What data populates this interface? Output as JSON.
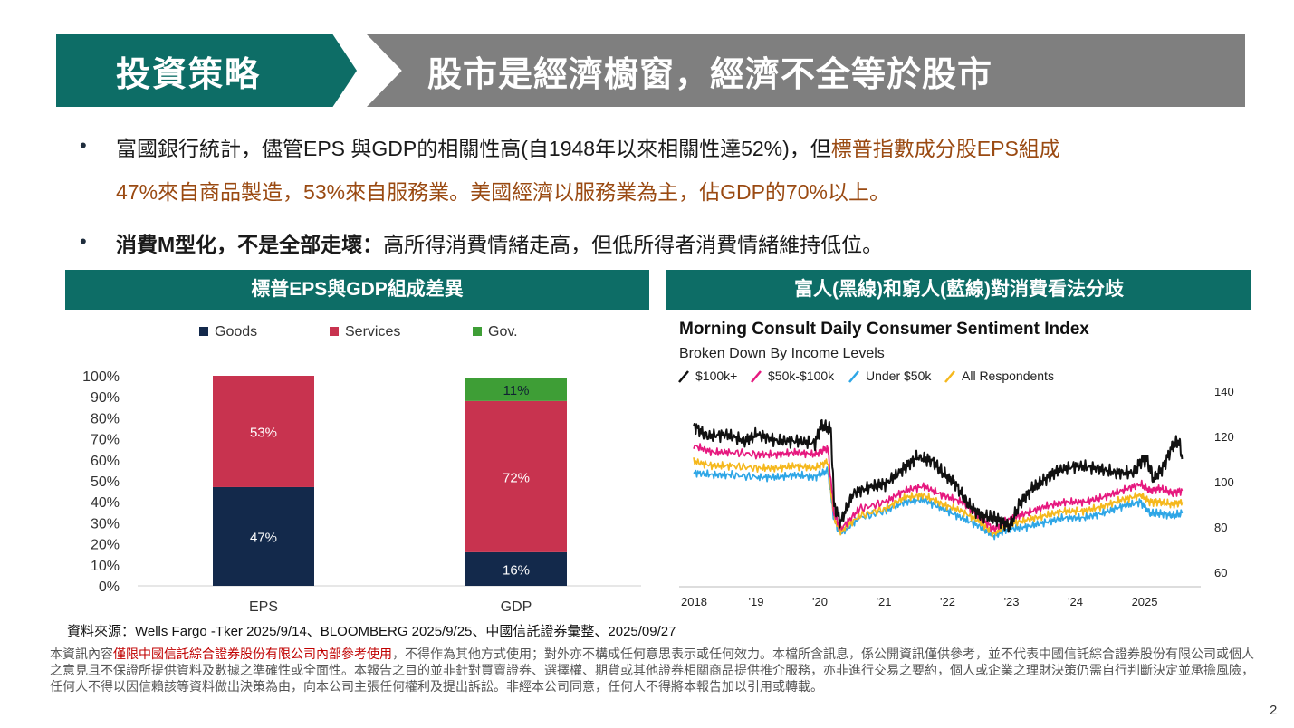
{
  "header": {
    "left_title": "投資策略",
    "right_title": "股市是經濟櫥窗，經濟不全等於股市"
  },
  "bullets": {
    "b1_line1_normal": "富國銀行統計，儘管EPS  與GDP的相關性高(自1948年以來相關性達52%)，但",
    "b1_line1_highlight": "標普指數成分股EPS組成",
    "b1_line2_highlight": "47%來自商品製造，53%來自服務業。美國經濟以服務業為主，佔GDP的70%以上。",
    "b2_bold": "消費M型化，不是全部走壞：",
    "b2_normal": "高所得消費情緒走高，但低所得者消費情緒維持低位。"
  },
  "left_panel": {
    "title": "標普EPS與GDP組成差異"
  },
  "right_panel": {
    "title": "富人(黑線)和窮人(藍線)對消費看法分歧"
  },
  "chart_data": [
    {
      "type": "bar",
      "stacked": true,
      "categories": [
        "EPS",
        "GDP"
      ],
      "series": [
        {
          "name": "Goods",
          "values": [
            47,
            16
          ],
          "color": "#13294b"
        },
        {
          "name": "Services",
          "values": [
            53,
            72
          ],
          "color": "#c8334f"
        },
        {
          "name": "Gov.",
          "values": [
            0,
            11
          ],
          "color": "#3e9e36"
        }
      ],
      "data_labels": {
        "EPS": [
          "47%",
          "53%",
          ""
        ],
        "GDP": [
          "16%",
          "72%",
          "11%"
        ]
      },
      "ytick_labels": [
        "100%",
        "90%",
        "80%",
        "70%",
        "60%",
        "50%",
        "40%",
        "30%",
        "20%",
        "10%",
        "0%"
      ],
      "ylim": [
        0,
        100
      ],
      "legend": "top",
      "grid": false
    },
    {
      "type": "line",
      "title": "Morning Consult Daily Consumer Sentiment Index",
      "subtitle": "Broken Down By Income Levels",
      "x_tick_labels": [
        "2018",
        "'19",
        "'20",
        "'21",
        "'22",
        "'23",
        "'24",
        "2025"
      ],
      "y_tick_labels": [
        "140",
        "120",
        "100",
        "80",
        "60"
      ],
      "ylim": [
        60,
        140
      ],
      "xlim": [
        2018,
        2025.8
      ],
      "legend": "top-left",
      "series": [
        {
          "name": "$100k+",
          "color": "#111111",
          "x": [
            2018.0,
            2018.2,
            2018.5,
            2018.8,
            2019.0,
            2019.3,
            2019.6,
            2019.9,
            2020.0,
            2020.15,
            2020.2,
            2020.3,
            2020.5,
            2020.8,
            2021.0,
            2021.3,
            2021.5,
            2021.75,
            2021.9,
            2022.1,
            2022.3,
            2022.5,
            2022.7,
            2022.85,
            2022.95,
            2023.1,
            2023.3,
            2023.5,
            2023.7,
            2024.0,
            2024.3,
            2024.6,
            2024.9,
            2025.0,
            2025.1,
            2025.2,
            2025.35,
            2025.5,
            2025.6,
            2025.65
          ],
          "y": [
            125,
            120,
            121,
            118,
            121,
            118,
            118,
            117,
            125,
            123,
            90,
            82,
            95,
            98,
            99,
            106,
            111,
            109,
            104,
            99,
            90,
            85,
            84,
            82,
            80,
            90,
            97,
            101,
            105,
            107,
            106,
            104,
            104,
            109,
            110,
            101,
            106,
            116,
            118,
            110
          ]
        },
        {
          "name": "$50k-$100k",
          "color": "#e6197f",
          "x": [
            2018.0,
            2018.3,
            2018.6,
            2019.0,
            2019.3,
            2019.6,
            2019.9,
            2020.1,
            2020.2,
            2020.3,
            2020.6,
            2021.0,
            2021.3,
            2021.6,
            2021.9,
            2022.2,
            2022.5,
            2022.7,
            2022.9,
            2023.2,
            2023.5,
            2023.8,
            2024.1,
            2024.4,
            2024.7,
            2025.0,
            2025.15,
            2025.3,
            2025.5,
            2025.65
          ],
          "y": [
            116,
            113,
            113,
            112,
            112,
            113,
            112,
            115,
            86,
            79,
            88,
            91,
            96,
            98,
            94,
            91,
            84,
            79,
            83,
            86,
            89,
            91,
            91,
            93,
            96,
            99,
            96,
            97,
            95,
            96
          ]
        },
        {
          "name": "Under $50k",
          "color": "#2ea6e6",
          "x": [
            2018.0,
            2018.3,
            2018.6,
            2019.0,
            2019.3,
            2019.6,
            2019.9,
            2020.1,
            2020.2,
            2020.3,
            2020.6,
            2021.0,
            2021.3,
            2021.6,
            2021.9,
            2022.2,
            2022.5,
            2022.7,
            2022.9,
            2023.2,
            2023.5,
            2023.8,
            2024.1,
            2024.4,
            2024.7,
            2025.0,
            2025.15,
            2025.3,
            2025.5,
            2025.65
          ],
          "y": [
            104,
            103,
            103,
            102,
            102,
            103,
            102,
            105,
            83,
            77,
            84,
            87,
            91,
            92,
            88,
            84,
            80,
            76,
            79,
            80,
            82,
            84,
            84,
            86,
            89,
            91,
            86,
            86,
            85,
            86
          ]
        },
        {
          "name": "All Respondents",
          "color": "#f5b81d",
          "x": [
            2018.0,
            2018.3,
            2018.6,
            2019.0,
            2019.3,
            2019.6,
            2019.9,
            2020.1,
            2020.2,
            2020.3,
            2020.6,
            2021.0,
            2021.3,
            2021.6,
            2021.9,
            2022.2,
            2022.5,
            2022.7,
            2022.9,
            2023.2,
            2023.5,
            2023.8,
            2024.1,
            2024.4,
            2024.7,
            2025.0,
            2025.15,
            2025.3,
            2025.5,
            2025.65
          ],
          "y": [
            109,
            107,
            107,
            106,
            106,
            107,
            106,
            109,
            84,
            78,
            85,
            88,
            93,
            94,
            90,
            87,
            82,
            77,
            81,
            83,
            85,
            87,
            87,
            89,
            92,
            94,
            91,
            91,
            90,
            91
          ]
        }
      ]
    }
  ],
  "footer": {
    "source": "資料來源：Wells Fargo -Tker 2025/9/14、BLOOMBERG  2025/9/25、中國信託證券彙整、2025/09/27",
    "disclaimer_pre": "本資訊內容",
    "disclaimer_red": "僅限中國信託綜合證券股份有限公司內部參考使用",
    "disclaimer_post": "，不得作為其他方式使用；對外亦不構成任何意思表示或任何效力。本檔所含訊息，係公開資訊僅供參考，並不代表中國信託綜合證券股份有限公司或個人之意見且不保證所提供資料及數據之準確性或全面性。本報告之目的並非針對買賣證券、選擇權、期貨或其他證券相關商品提供推介服務，亦非進行交易之要約，個人或企業之理財決策仍需自行判斷決定並承擔風險，任何人不得以因信賴該等資料做出決策為由，向本公司主張任何權利及提出訴訟。非經本公司同意，任何人不得將本報告加以引用或轉載。",
    "page_number": "2"
  }
}
